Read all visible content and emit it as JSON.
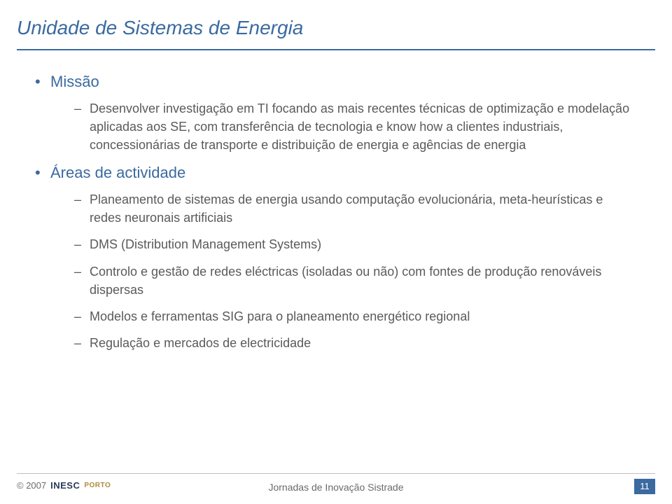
{
  "colors": {
    "title": "#3a6aa0",
    "rule": "#3a6aa0",
    "body": "#5a5a5a",
    "lvl1": "#3a6aa0",
    "foot_text": "#6a6a6a",
    "logo": "#2b3a5a",
    "logo_sub": "#b08a38",
    "page_badge": "#3a6aa0",
    "foot_line": "#bfbfbf"
  },
  "title": "Unidade de Sistemas de Energia",
  "sections": [
    {
      "heading": "Missão",
      "items": [
        "Desenvolver investigação em TI focando as mais recentes técnicas de optimização e modelação aplicadas aos SE, com transferência de tecnologia e know how a clientes industriais, concessionárias de transporte e distribuição de energia e agências de energia"
      ]
    },
    {
      "heading": "Áreas de actividade",
      "items": [
        "Planeamento de  sistemas de energia usando computação evolucionária, meta-heurísticas e redes neuronais artificiais",
        "DMS (Distribution Management Systems)",
        "Controlo e gestão de redes eléctricas (isoladas ou não) com fontes de produção renováveis dispersas",
        "Modelos e ferramentas SIG para o planeamento energético regional",
        "Regulação e mercados de electricidade"
      ]
    }
  ],
  "footer": {
    "copyright": "© 2007",
    "logo_main": "INESC",
    "logo_sub": "PORTO",
    "center": "Jornadas de Inovação Sistrade",
    "page": "11"
  }
}
